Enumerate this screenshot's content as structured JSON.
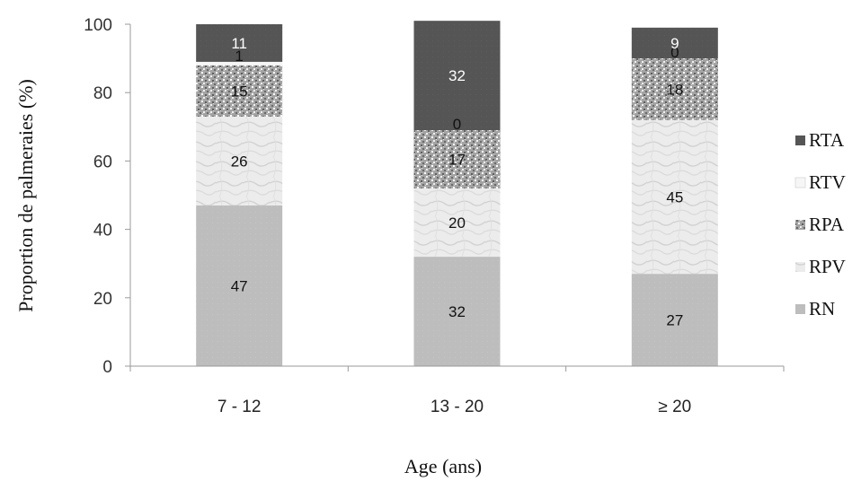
{
  "chart_data": {
    "type": "bar",
    "stacked": true,
    "categories": [
      "7 - 12",
      "13 - 20",
      "≥ 20"
    ],
    "series": [
      {
        "name": "RN",
        "values": [
          47,
          32,
          27
        ],
        "color": "#bcbcbc",
        "pattern": "flat-gray"
      },
      {
        "name": "RPV",
        "values": [
          26,
          20,
          45
        ],
        "color": "#ebebeb",
        "pattern": "marble-light"
      },
      {
        "name": "RPA",
        "values": [
          15,
          17,
          18
        ],
        "color": "#9a9a9a",
        "pattern": "speckled"
      },
      {
        "name": "RTV",
        "values": [
          1,
          0,
          0
        ],
        "color": "#f4f4f4",
        "pattern": "white"
      },
      {
        "name": "RTA",
        "values": [
          11,
          32,
          9
        ],
        "color": "#555555",
        "pattern": "dark"
      }
    ],
    "labels": [
      [
        "47",
        "26",
        "15",
        "1",
        "11"
      ],
      [
        "32",
        "20",
        "17",
        "0",
        "32"
      ],
      [
        "27",
        "45",
        "18",
        "0",
        "9"
      ]
    ],
    "xlabel": "Age (ans)",
    "ylabel": "Proportion de palmeraies (%)",
    "ylim": [
      0,
      100
    ],
    "yticks": [
      "0",
      "20",
      "40",
      "60",
      "80",
      "100"
    ],
    "legend_position": "right",
    "legend_order": [
      "RTA",
      "RTV",
      "RPA",
      "RPV",
      "RN"
    ],
    "grid": false
  }
}
